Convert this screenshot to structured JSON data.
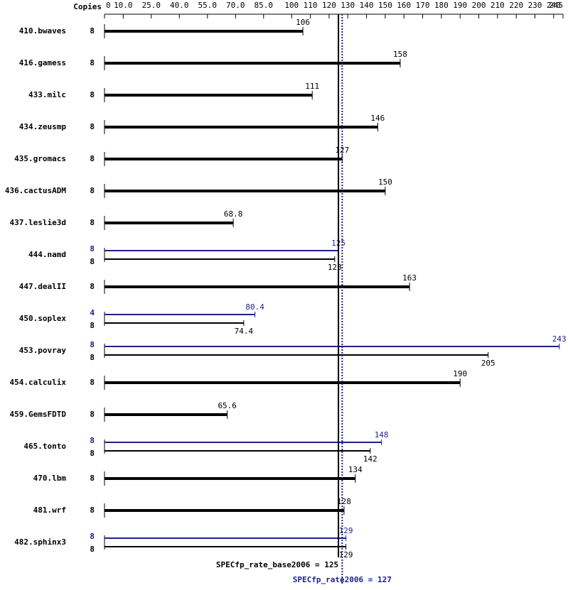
{
  "chart_data": {
    "type": "spec-bar",
    "copies_header": "Copies",
    "categories": [
      "410.bwaves",
      "416.gamess",
      "433.milc",
      "434.zeusmp",
      "435.gromacs",
      "436.cactusADM",
      "437.leslie3d",
      "444.namd",
      "447.dealII",
      "450.soplex",
      "453.povray",
      "454.calculix",
      "459.GemsFDTD",
      "465.tonto",
      "470.lbm",
      "481.wrf",
      "482.sphinx3"
    ],
    "base_copies": [
      8,
      8,
      8,
      8,
      8,
      8,
      8,
      8,
      8,
      8,
      8,
      8,
      8,
      8,
      8,
      8,
      8
    ],
    "base_values": [
      106,
      158,
      111,
      146,
      127,
      150,
      68.8,
      123,
      163,
      74.4,
      205,
      190,
      65.6,
      142,
      134,
      128,
      129
    ],
    "peak_copies": [
      null,
      null,
      null,
      null,
      null,
      null,
      null,
      8,
      null,
      4,
      8,
      null,
      null,
      8,
      null,
      null,
      8
    ],
    "peak_values": [
      null,
      null,
      null,
      null,
      null,
      null,
      null,
      125,
      null,
      80.4,
      243,
      null,
      null,
      148,
      null,
      null,
      129
    ],
    "base_color": "#000000",
    "peak_color": "#1f1f8f",
    "xlim": [
      0,
      245
    ],
    "xticks": [
      0,
      {
        "value": 10,
        "label": "10.0"
      },
      {
        "value": 25,
        "label": "25.0"
      },
      {
        "value": 40,
        "label": "40.0"
      },
      {
        "value": 55,
        "label": "55.0"
      },
      {
        "value": 70,
        "label": "70.0"
      },
      {
        "value": 85,
        "label": "85.0"
      },
      100,
      110,
      120,
      130,
      140,
      150,
      160,
      170,
      180,
      190,
      200,
      210,
      220,
      230,
      240,
      245
    ],
    "base_reference": {
      "value": 125,
      "label": "SPECfp_rate_base2006 = 125"
    },
    "peak_reference": {
      "value": 127,
      "label": "SPECfp_rate2006 = 127"
    }
  }
}
